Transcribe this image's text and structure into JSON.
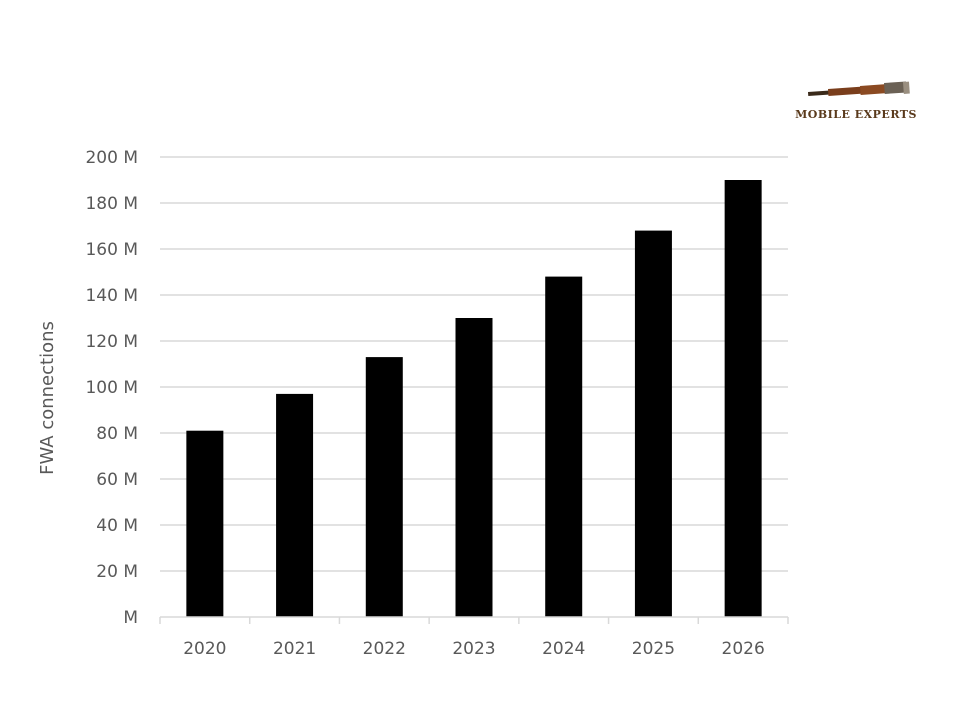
{
  "logo": {
    "text": "Mobile Experts",
    "icon": "telescope-icon"
  },
  "chart_data": {
    "type": "bar",
    "title": "",
    "xlabel": "",
    "ylabel": "FWA connections",
    "categories": [
      "2020",
      "2021",
      "2022",
      "2023",
      "2024",
      "2025",
      "2026"
    ],
    "series": [
      {
        "values": [
          81,
          97,
          113,
          130,
          148,
          168,
          190
        ],
        "color": "#000000"
      }
    ],
    "value_unit": "M",
    "ylim": [
      0,
      200
    ],
    "y_ticks": [
      0,
      20,
      40,
      60,
      80,
      100,
      120,
      140,
      160,
      180,
      200
    ],
    "y_tick_labels": [
      "M",
      "20 M",
      "40 M",
      "60 M",
      "80 M",
      "100 M",
      "120 M",
      "140 M",
      "160 M",
      "180 M",
      "200 M"
    ],
    "grid": true,
    "legend": "none",
    "gridline_color": "#d9d9d9"
  }
}
